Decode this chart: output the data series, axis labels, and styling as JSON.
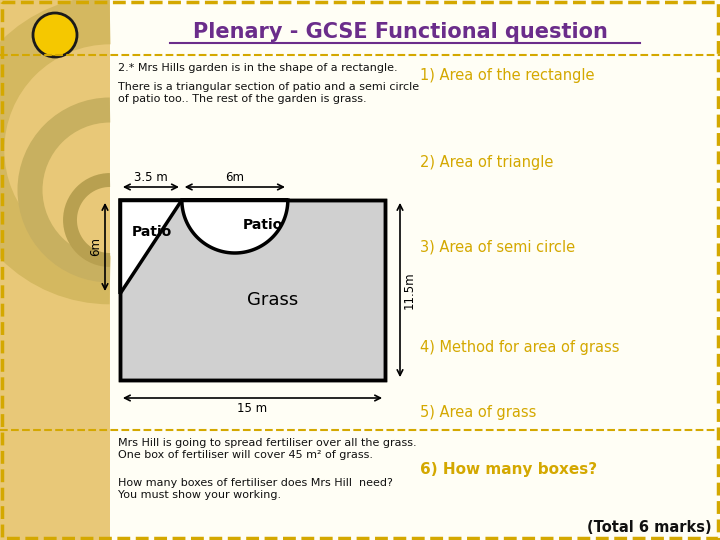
{
  "title": "Plenary - GCSE Functional question",
  "bg_outer": "#f0d898",
  "bg_main": "#fffef5",
  "left_strip_color": "#e8c878",
  "border_color": "#d4a800",
  "title_color": "#6b2d8b",
  "question_text": "2.* Mrs Hills garden is in the shape of a rectangle.",
  "desc_text": "There is a triangular section of patio and a semi circle\nof patio too.. The rest of the garden is grass.",
  "dim_35": "3.5 m",
  "dim_6m_top": "6m",
  "dim_6m_left": "6m",
  "dim_115m": "11.5m",
  "dim_15m": "15 m",
  "label_patio1": "Patio",
  "label_patio2": "Patio",
  "label_grass": "Grass",
  "right_labels": [
    "1) Area of the rectangle",
    "2) Area of triangle",
    "3) Area of semi circle",
    "4) Method for area of grass",
    "5) Area of grass",
    "6) How many boxes?"
  ],
  "right_label_color": "#d4a800",
  "bottom_text1": "Mrs Hill is going to spread fertiliser over all the grass.\nOne box of fertiliser will cover 45 m² of grass.",
  "bottom_text2": "How many boxes of fertiliser does Mrs Hill  need?\nYou must show your working.",
  "total_marks": "(Total 6 marks)",
  "shape_fill": "#d0d0d0",
  "patio_fill": "#ffffff",
  "shape_line_color": "#000000",
  "circle_color": "#f5c800",
  "circle_outline": "#1a1a1a",
  "deco_arc_color": "#c8b060"
}
